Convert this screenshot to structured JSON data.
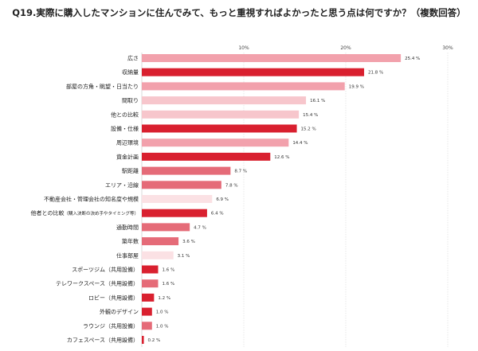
{
  "chart_data": {
    "type": "bar",
    "orientation": "horizontal",
    "title": "Q19.実際に購入したマンションに住んでみて、もっと重視すればよかったと思う点は何ですか？（複数回答）",
    "xlim": [
      0,
      30
    ],
    "xticks": [
      10,
      20,
      30
    ],
    "xtick_labels": [
      "10%",
      "20%",
      "30%"
    ],
    "grid": true,
    "categories": [
      {
        "label": "広さ",
        "value": 25.4,
        "display": "25.4 %",
        "color": "#F2A1AC"
      },
      {
        "label": "収納量",
        "value": 21.8,
        "display": "21.8 %",
        "color": "#D9202F"
      },
      {
        "label": "部屋の方角・眺望・日当たり",
        "value": 19.9,
        "display": "19.9 %",
        "color": "#F2A1AC"
      },
      {
        "label": "間取り",
        "value": 16.1,
        "display": "16.1 %",
        "color": "#F7C6CC"
      },
      {
        "label": "他との比較",
        "value": 15.4,
        "display": "15.4 %",
        "color": "#F7C6CC"
      },
      {
        "label": "設備・仕様",
        "value": 15.2,
        "display": "15.2 %",
        "color": "#D9202F"
      },
      {
        "label": "周辺環境",
        "value": 14.4,
        "display": "14.4 %",
        "color": "#F2A1AC"
      },
      {
        "label": "資金計画",
        "value": 12.6,
        "display": "12.6 %",
        "color": "#D9202F"
      },
      {
        "label": "駅距離",
        "value": 8.7,
        "display": "8.7 %",
        "color": "#E56B78"
      },
      {
        "label": "エリア・沿線",
        "value": 7.8,
        "display": "7.8 %",
        "color": "#E56B78"
      },
      {
        "label": "不動産会社・管理会社の知名度や規模",
        "value": 6.9,
        "display": "6.9 %",
        "color": "#FBE1E4"
      },
      {
        "label": "他者との比較",
        "sublabel": "（購入決断の決め手やタイミング等）",
        "value": 6.4,
        "display": "6.4 %",
        "color": "#D9202F"
      },
      {
        "label": "通勤時間",
        "value": 4.7,
        "display": "4.7 %",
        "color": "#E56B78"
      },
      {
        "label": "築年数",
        "value": 3.6,
        "display": "3.6 %",
        "color": "#E56B78"
      },
      {
        "label": "仕事部屋",
        "value": 3.1,
        "display": "3.1 %",
        "color": "#FBE1E4"
      },
      {
        "label": "スポーツジム（共用設備）",
        "value": 1.6,
        "display": "1.6 %",
        "color": "#D9202F"
      },
      {
        "label": "テレワークスペース（共用設備）",
        "value": 1.6,
        "display": "1.6 %",
        "color": "#E56B78"
      },
      {
        "label": "ロビー（共用設備）",
        "value": 1.2,
        "display": "1.2 %",
        "color": "#D9202F"
      },
      {
        "label": "外観のデザイン",
        "value": 1.0,
        "display": "1.0 %",
        "color": "#D9202F"
      },
      {
        "label": "ラウンジ（共用設備）",
        "value": 1.0,
        "display": "1.0 %",
        "color": "#E56B78"
      },
      {
        "label": "カフェスペース（共用設備）",
        "value": 0.2,
        "display": "0.2 %",
        "color": "#D9202F"
      }
    ]
  }
}
